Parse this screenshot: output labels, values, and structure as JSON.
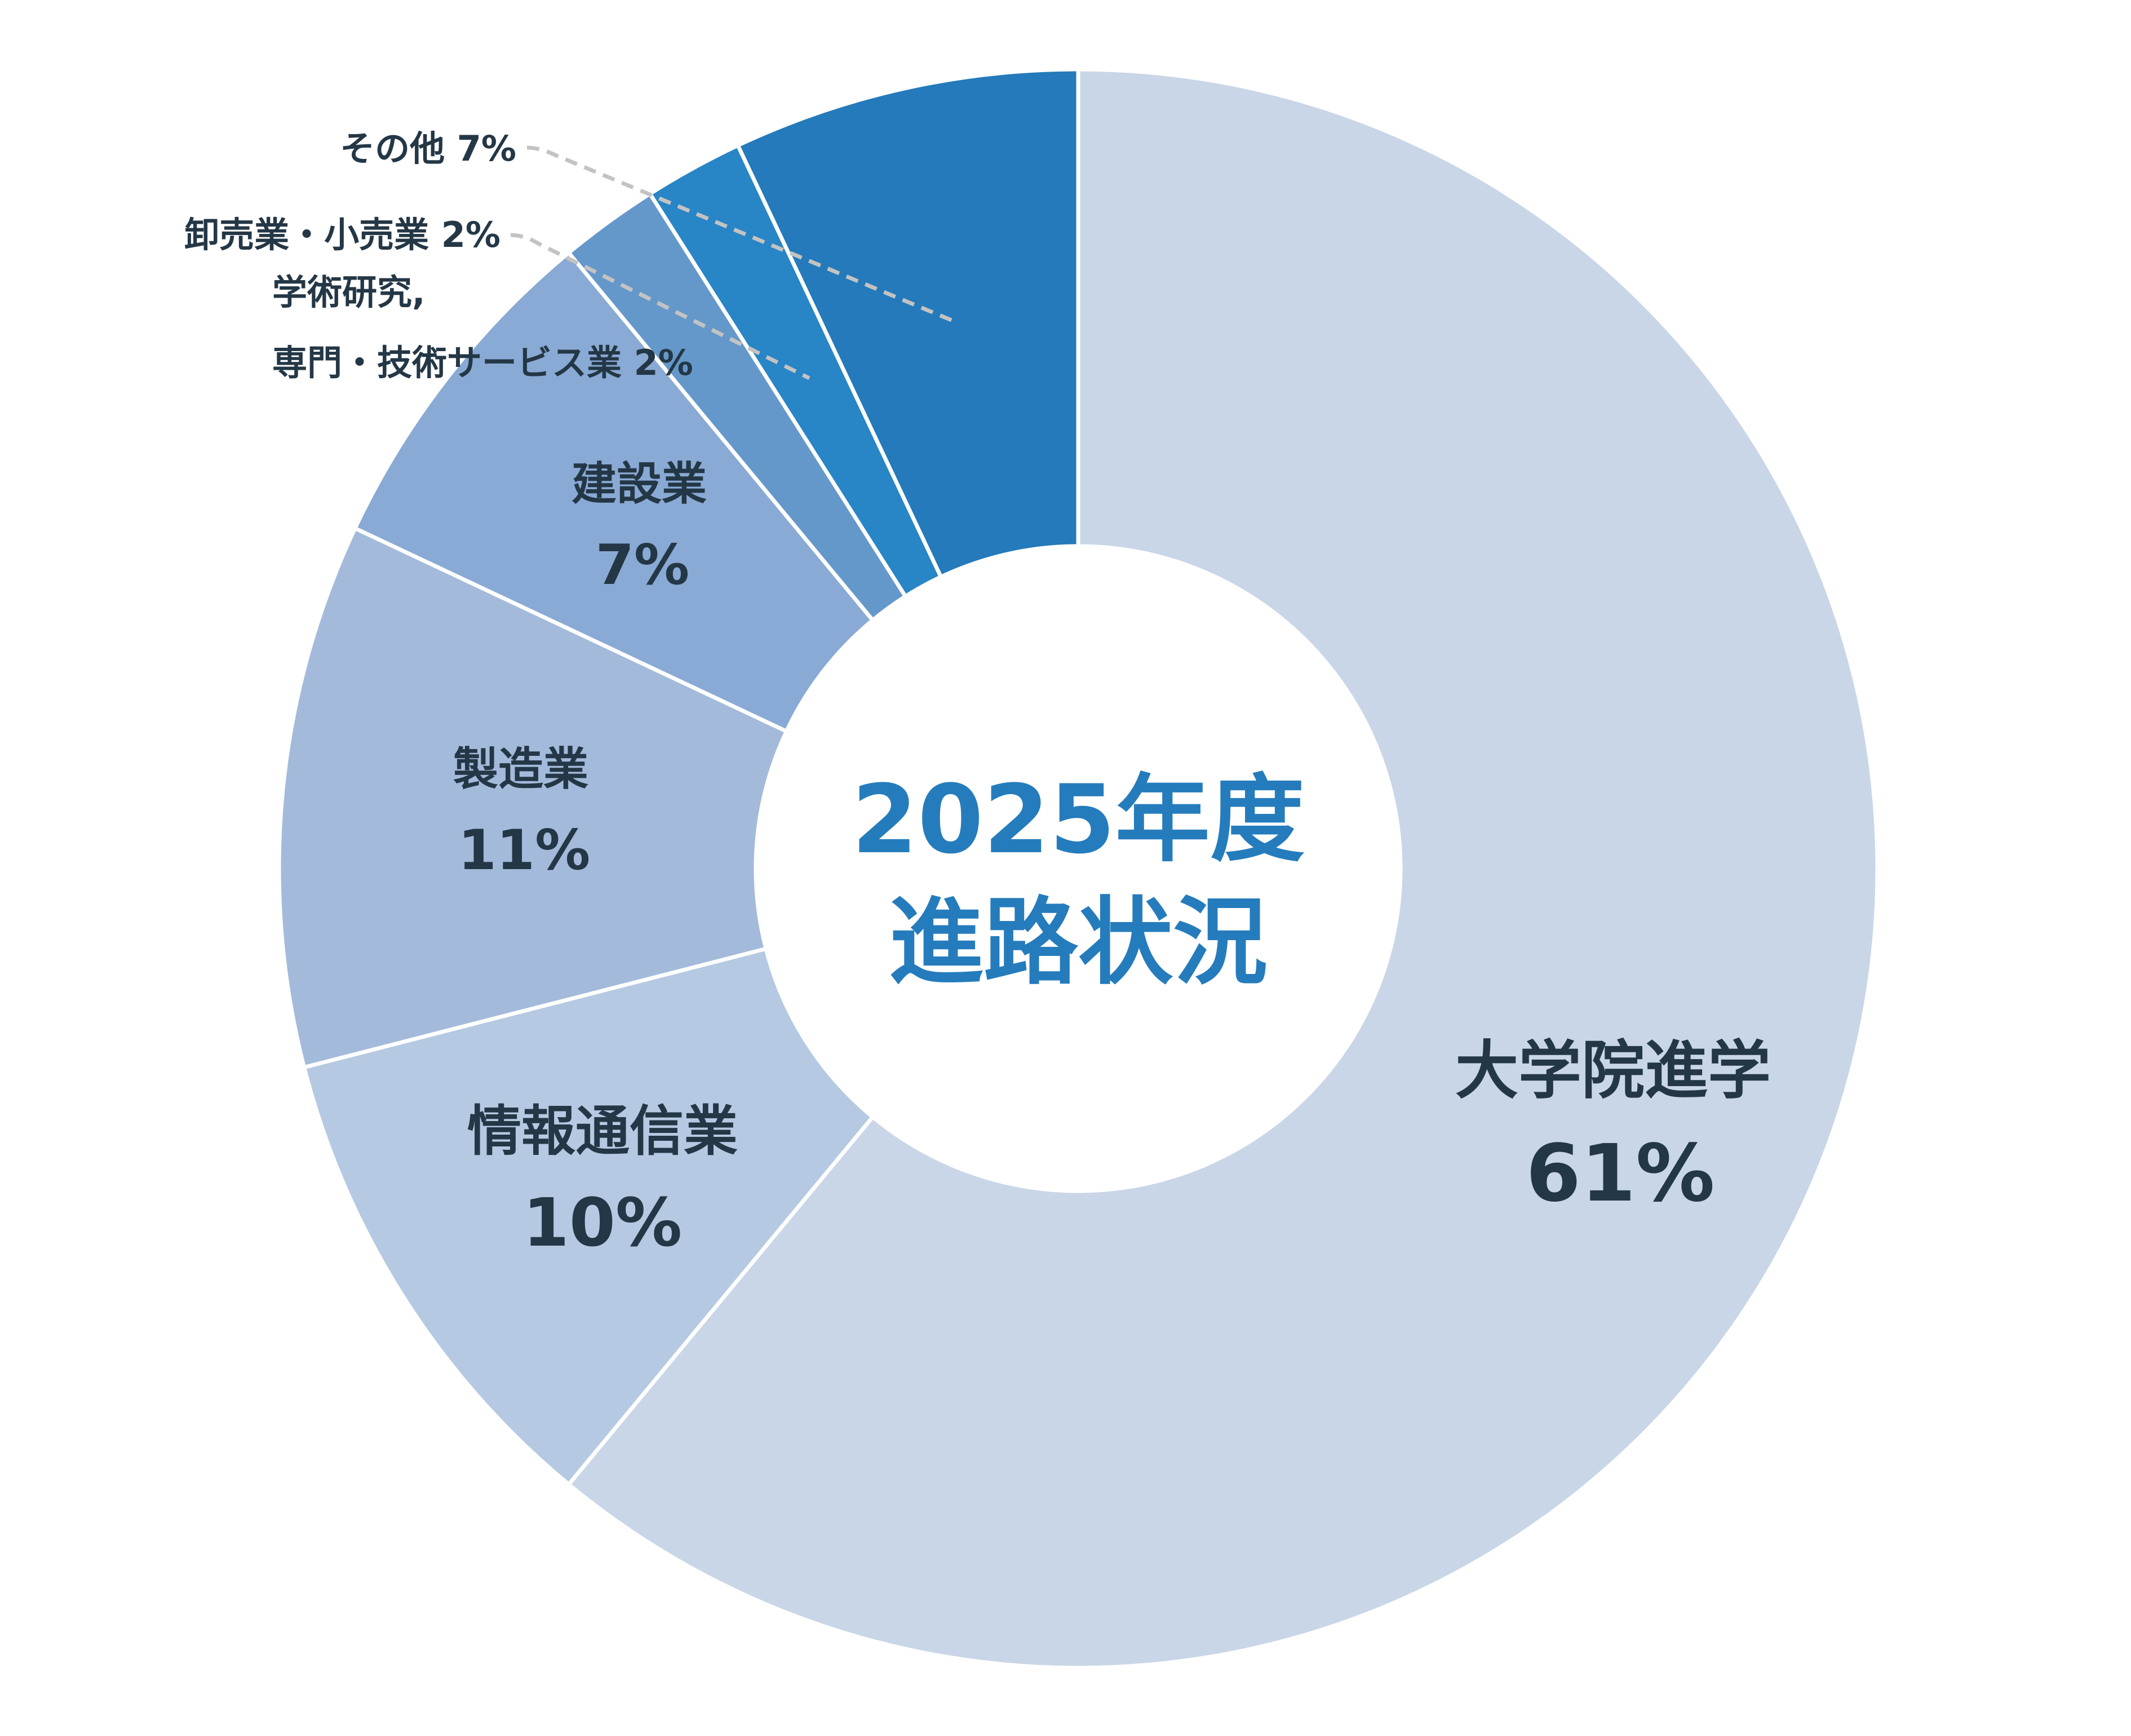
{
  "chart_data": {
    "type": "pie",
    "variant": "donut",
    "title": "2025年度 進路状況",
    "title_lines": [
      "2025年度",
      "進路状況"
    ],
    "start_angle": "12 o'clock, clockwise",
    "categories": [
      "大学院進学",
      "情報通信業",
      "製造業",
      "建設業",
      "学術研究, 専門・技術サービス業",
      "卸売業・小売業",
      "その他"
    ],
    "values": [
      61,
      10,
      11,
      7,
      2,
      2,
      7
    ],
    "unit": "%",
    "colors": [
      "#C9D6E8",
      "#B5C9E2",
      "#A3BADB",
      "#89AAD4",
      "#6598CA",
      "#2885C6",
      "#247ABA"
    ],
    "legend": "none (labels placed on/next to slices)"
  },
  "center": {
    "line1": "2025年度",
    "line2": "進路状況",
    "color": "#257CBC"
  },
  "labels": {
    "graduate": {
      "name": "大学院進学",
      "value": "61%"
    },
    "ict": {
      "name": "情報通信業",
      "value": "10%"
    },
    "manufacturing": {
      "name": "製造業",
      "value": "11%"
    },
    "construction": {
      "name": "建設業",
      "value": "7%"
    },
    "academic_line1": "学術研究,",
    "academic_line2": "専門・技術サービス業 2%",
    "retail": "卸売業・小売業 2%",
    "other": "その他 7%"
  },
  "style": {
    "text_color": "#243746",
    "leader_color": "#C3C3C3",
    "divider_color": "#FFFFFF"
  }
}
